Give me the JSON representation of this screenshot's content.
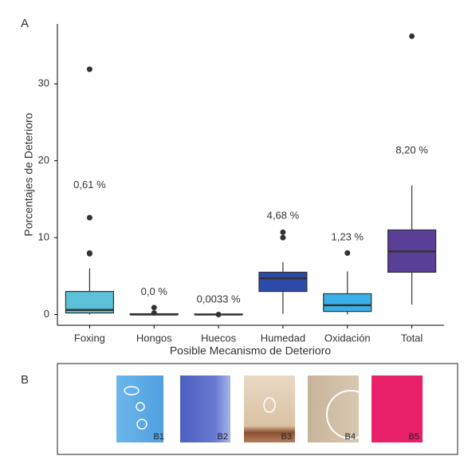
{
  "chart_data": {
    "type": "box",
    "panel_label": "A",
    "xlabel": "Posible Mecanismo de Deterioro",
    "ylabel": "Porcentajes de Deterioro",
    "categories": [
      "Foxing",
      "Hongos",
      "Huecos",
      "Humedad",
      "Oxidación",
      "Total"
    ],
    "ylim": [
      -1.4,
      37.8
    ],
    "yticks": [
      0,
      10,
      20,
      30
    ],
    "boxes": [
      {
        "color": "#5bc0d8",
        "min": 0,
        "q1": 0.2,
        "median": 0.6,
        "q3": 3.0,
        "max": 6.0,
        "outliers": [
          7.9,
          8.0,
          12.6,
          31.9
        ]
      },
      {
        "color": "#5a6fc0",
        "min": 0,
        "q1": 0,
        "median": 0,
        "q3": 0.1,
        "max": 0.1,
        "outliers": [
          0.2,
          0.9
        ]
      },
      {
        "color": "#7f8fb8",
        "min": 0,
        "q1": 0,
        "median": 0,
        "q3": 0.05,
        "max": 0.05,
        "outliers": [
          0
        ]
      },
      {
        "color": "#2e4aa8",
        "min": 0.1,
        "q1": 3.0,
        "median": 4.7,
        "q3": 5.5,
        "max": 6.8,
        "outliers": [
          10.0,
          10.7
        ]
      },
      {
        "color": "#3ab0ea",
        "min": 0,
        "q1": 0.4,
        "median": 1.2,
        "q3": 2.7,
        "max": 5.6,
        "outliers": [
          8.0
        ]
      },
      {
        "color": "#5a3f99",
        "min": 1.3,
        "q1": 5.5,
        "median": 8.2,
        "q3": 11.0,
        "max": 16.8,
        "outliers": [
          36.2
        ]
      }
    ],
    "annotations": [
      {
        "text": "0,61 %",
        "y": 16.8
      },
      {
        "text": "0,0 %",
        "y": 2.9
      },
      {
        "text": "0,0033 %",
        "y": 1.9
      },
      {
        "text": "4,68 %",
        "y": 12.8
      },
      {
        "text": "1,23 %",
        "y": 10.0
      },
      {
        "text": "8,20 %",
        "y": 21.3
      }
    ]
  },
  "panel_b": {
    "label": "B",
    "images": [
      "B1",
      "B2",
      "B3",
      "B4",
      "B5"
    ]
  }
}
